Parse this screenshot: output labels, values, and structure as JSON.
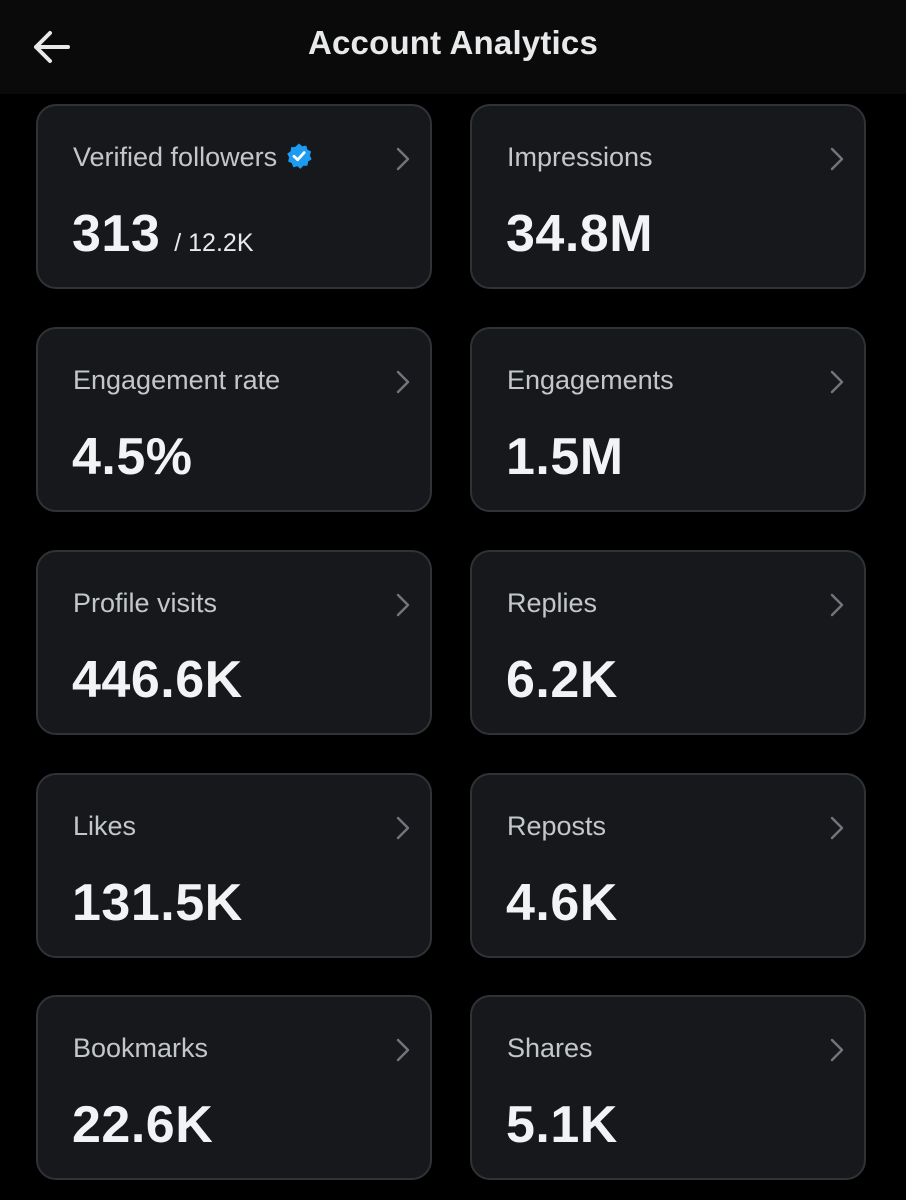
{
  "header": {
    "title": "Account Analytics",
    "back_icon": "arrow-left-icon"
  },
  "cards": [
    {
      "label": "Verified followers",
      "value": "313",
      "sub": "/ 12.2K",
      "icon": "verified-badge-icon"
    },
    {
      "label": "Impressions",
      "value": "34.8M"
    },
    {
      "label": "Engagement rate",
      "value": "4.5%"
    },
    {
      "label": "Engagements",
      "value": "1.5M"
    },
    {
      "label": "Profile visits",
      "value": "446.6K"
    },
    {
      "label": "Replies",
      "value": "6.2K"
    },
    {
      "label": "Likes",
      "value": "131.5K"
    },
    {
      "label": "Reposts",
      "value": "4.6K"
    },
    {
      "label": "Bookmarks",
      "value": "22.6K"
    },
    {
      "label": "Shares",
      "value": "5.1K"
    }
  ],
  "colors": {
    "background": "#000000",
    "card_background": "#16181c",
    "card_border": "#2f3336",
    "verified_blue": "#1d9bf0"
  }
}
